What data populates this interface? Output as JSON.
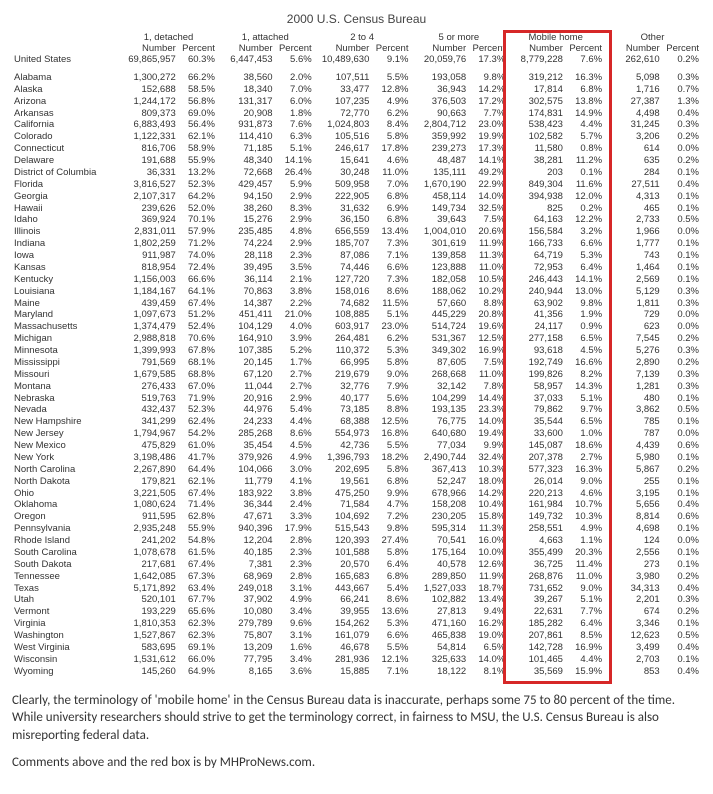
{
  "title": "2000 U.S. Census Bureau",
  "columns": [
    {
      "group": "1, detached",
      "sub": [
        "Number",
        "Percent"
      ]
    },
    {
      "group": "1, attached",
      "sub": [
        "Number",
        "Percent"
      ]
    },
    {
      "group": "2 to 4",
      "sub": [
        "Number",
        "Percent"
      ]
    },
    {
      "group": "5 or more",
      "sub": [
        "Number",
        "Percent"
      ]
    },
    {
      "group": "Mobile home",
      "sub": [
        "Number",
        "Percent"
      ]
    },
    {
      "group": "Other",
      "sub": [
        "Number",
        "Percent"
      ]
    }
  ],
  "first_row_label": "United States",
  "first_row": [
    "69,865,957",
    "60.3%",
    "6,447,453",
    "5.6%",
    "10,489,630",
    "9.1%",
    "20,059,76",
    "17.3%",
    "8,779,228",
    "7.6%",
    "262,610",
    "0.2%"
  ],
  "rows": [
    {
      "name": "Alabama",
      "v": [
        "1,300,272",
        "66.2%",
        "38,560",
        "2.0%",
        "107,511",
        "5.5%",
        "193,058",
        "9.8%",
        "319,212",
        "16.3%",
        "5,098",
        "0.3%"
      ]
    },
    {
      "name": "Alaska",
      "v": [
        "152,688",
        "58.5%",
        "18,340",
        "7.0%",
        "33,477",
        "12.8%",
        "36,943",
        "14.2%",
        "17,814",
        "6.8%",
        "1,716",
        "0.7%"
      ]
    },
    {
      "name": "Arizona",
      "v": [
        "1,244,172",
        "56.8%",
        "131,317",
        "6.0%",
        "107,235",
        "4.9%",
        "376,503",
        "17.2%",
        "302,575",
        "13.8%",
        "27,387",
        "1.3%"
      ]
    },
    {
      "name": "Arkansas",
      "v": [
        "809,373",
        "69.0%",
        "20,908",
        "1.8%",
        "72,770",
        "6.2%",
        "90,663",
        "7.7%",
        "174,831",
        "14.9%",
        "4,498",
        "0.4%"
      ]
    },
    {
      "name": "California",
      "v": [
        "6,883,493",
        "56.4%",
        "931,873",
        "7.6%",
        "1,024,803",
        "8.4%",
        "2,804,712",
        "23.0%",
        "538,423",
        "4.4%",
        "31,245",
        "0.3%"
      ]
    },
    {
      "name": "Colorado",
      "v": [
        "1,122,331",
        "62.1%",
        "114,410",
        "6.3%",
        "105,516",
        "5.8%",
        "359,992",
        "19.9%",
        "102,582",
        "5.7%",
        "3,206",
        "0.2%"
      ]
    },
    {
      "name": "Connecticut",
      "v": [
        "816,706",
        "58.9%",
        "71,185",
        "5.1%",
        "246,617",
        "17.8%",
        "239,273",
        "17.3%",
        "11,580",
        "0.8%",
        "614",
        "0.0%"
      ]
    },
    {
      "name": "Delaware",
      "v": [
        "191,688",
        "55.9%",
        "48,340",
        "14.1%",
        "15,641",
        "4.6%",
        "48,487",
        "14.1%",
        "38,281",
        "11.2%",
        "635",
        "0.2%"
      ]
    },
    {
      "name": "District of Columbia",
      "v": [
        "36,331",
        "13.2%",
        "72,668",
        "26.4%",
        "30,248",
        "11.0%",
        "135,111",
        "49.2%",
        "203",
        "0.1%",
        "284",
        "0.1%"
      ]
    },
    {
      "name": "Florida",
      "v": [
        "3,816,527",
        "52.3%",
        "429,457",
        "5.9%",
        "509,958",
        "7.0%",
        "1,670,190",
        "22.9%",
        "849,304",
        "11.6%",
        "27,511",
        "0.4%"
      ]
    },
    {
      "name": "Georgia",
      "v": [
        "2,107,317",
        "64.2%",
        "94,150",
        "2.9%",
        "222,905",
        "6.8%",
        "458,114",
        "14.0%",
        "394,938",
        "12.0%",
        "4,313",
        "0.1%"
      ]
    },
    {
      "name": "Hawaii",
      "v": [
        "239,626",
        "52.0%",
        "38,260",
        "8.3%",
        "31,632",
        "6.9%",
        "149,734",
        "32.5%",
        "825",
        "0.2%",
        "465",
        "0.1%"
      ]
    },
    {
      "name": "Idaho",
      "v": [
        "369,924",
        "70.1%",
        "15,276",
        "2.9%",
        "36,150",
        "6.8%",
        "39,643",
        "7.5%",
        "64,163",
        "12.2%",
        "2,733",
        "0.5%"
      ]
    },
    {
      "name": "Illinois",
      "v": [
        "2,831,011",
        "57.9%",
        "235,485",
        "4.8%",
        "656,559",
        "13.4%",
        "1,004,010",
        "20.6%",
        "156,584",
        "3.2%",
        "1,966",
        "0.0%"
      ]
    },
    {
      "name": "Indiana",
      "v": [
        "1,802,259",
        "71.2%",
        "74,224",
        "2.9%",
        "185,707",
        "7.3%",
        "301,619",
        "11.9%",
        "166,733",
        "6.6%",
        "1,777",
        "0.1%"
      ]
    },
    {
      "name": "Iowa",
      "v": [
        "911,987",
        "74.0%",
        "28,118",
        "2.3%",
        "87,086",
        "7.1%",
        "139,858",
        "11.3%",
        "64,719",
        "5.3%",
        "743",
        "0.1%"
      ]
    },
    {
      "name": "Kansas",
      "v": [
        "818,954",
        "72.4%",
        "39,495",
        "3.5%",
        "74,446",
        "6.6%",
        "123,888",
        "11.0%",
        "72,953",
        "6.4%",
        "1,464",
        "0.1%"
      ]
    },
    {
      "name": "Kentucky",
      "v": [
        "1,156,003",
        "66.6%",
        "36,114",
        "2.1%",
        "127,720",
        "7.3%",
        "182,058",
        "10.5%",
        "246,443",
        "14.1%",
        "2,569",
        "0.1%"
      ]
    },
    {
      "name": "Louisiana",
      "v": [
        "1,184,167",
        "64.1%",
        "70,863",
        "3.8%",
        "158,016",
        "8.6%",
        "188,062",
        "10.2%",
        "240,944",
        "13.0%",
        "5,129",
        "0.3%"
      ]
    },
    {
      "name": "Maine",
      "v": [
        "439,459",
        "67.4%",
        "14,387",
        "2.2%",
        "74,682",
        "11.5%",
        "57,660",
        "8.8%",
        "63,902",
        "9.8%",
        "1,811",
        "0.3%"
      ]
    },
    {
      "name": "Maryland",
      "v": [
        "1,097,673",
        "51.2%",
        "451,411",
        "21.0%",
        "108,885",
        "5.1%",
        "445,229",
        "20.8%",
        "41,356",
        "1.9%",
        "729",
        "0.0%"
      ]
    },
    {
      "name": "Massachusetts",
      "v": [
        "1,374,479",
        "52.4%",
        "104,129",
        "4.0%",
        "603,917",
        "23.0%",
        "514,724",
        "19.6%",
        "24,117",
        "0.9%",
        "623",
        "0.0%"
      ]
    },
    {
      "name": "Michigan",
      "v": [
        "2,988,818",
        "70.6%",
        "164,910",
        "3.9%",
        "264,481",
        "6.2%",
        "531,367",
        "12.5%",
        "277,158",
        "6.5%",
        "7,545",
        "0.2%"
      ]
    },
    {
      "name": "Minnesota",
      "v": [
        "1,399,993",
        "67.8%",
        "107,385",
        "5.2%",
        "110,372",
        "5.3%",
        "349,302",
        "16.9%",
        "93,618",
        "4.5%",
        "5,276",
        "0.3%"
      ]
    },
    {
      "name": "Mississippi",
      "v": [
        "791,569",
        "68.1%",
        "20,145",
        "1.7%",
        "66,995",
        "5.8%",
        "87,605",
        "7.5%",
        "192,749",
        "16.6%",
        "2,890",
        "0.2%"
      ]
    },
    {
      "name": "Missouri",
      "v": [
        "1,679,585",
        "68.8%",
        "67,120",
        "2.7%",
        "219,679",
        "9.0%",
        "268,668",
        "11.0%",
        "199,826",
        "8.2%",
        "7,139",
        "0.3%"
      ]
    },
    {
      "name": "Montana",
      "v": [
        "276,433",
        "67.0%",
        "11,044",
        "2.7%",
        "32,776",
        "7.9%",
        "32,142",
        "7.8%",
        "58,957",
        "14.3%",
        "1,281",
        "0.3%"
      ]
    },
    {
      "name": "Nebraska",
      "v": [
        "519,763",
        "71.9%",
        "20,916",
        "2.9%",
        "40,177",
        "5.6%",
        "104,299",
        "14.4%",
        "37,033",
        "5.1%",
        "480",
        "0.1%"
      ]
    },
    {
      "name": "Nevada",
      "v": [
        "432,437",
        "52.3%",
        "44,976",
        "5.4%",
        "73,185",
        "8.8%",
        "193,135",
        "23.3%",
        "79,862",
        "9.7%",
        "3,862",
        "0.5%"
      ]
    },
    {
      "name": "New Hampshire",
      "v": [
        "341,299",
        "62.4%",
        "24,233",
        "4.4%",
        "68,388",
        "12.5%",
        "76,775",
        "14.0%",
        "35,544",
        "6.5%",
        "785",
        "0.1%"
      ]
    },
    {
      "name": "New Jersey",
      "v": [
        "1,794,967",
        "54.2%",
        "285,268",
        "8.6%",
        "554,973",
        "16.8%",
        "640,680",
        "19.4%",
        "33,600",
        "1.0%",
        "787",
        "0.0%"
      ]
    },
    {
      "name": "New Mexico",
      "v": [
        "475,829",
        "61.0%",
        "35,454",
        "4.5%",
        "42,736",
        "5.5%",
        "77,034",
        "9.9%",
        "145,087",
        "18.6%",
        "4,439",
        "0.6%"
      ]
    },
    {
      "name": "New York",
      "v": [
        "3,198,486",
        "41.7%",
        "379,926",
        "4.9%",
        "1,396,793",
        "18.2%",
        "2,490,744",
        "32.4%",
        "207,378",
        "2.7%",
        "5,980",
        "0.1%"
      ]
    },
    {
      "name": "North Carolina",
      "v": [
        "2,267,890",
        "64.4%",
        "104,066",
        "3.0%",
        "202,695",
        "5.8%",
        "367,413",
        "10.3%",
        "577,323",
        "16.3%",
        "5,867",
        "0.2%"
      ]
    },
    {
      "name": "North Dakota",
      "v": [
        "179,821",
        "62.1%",
        "11,779",
        "4.1%",
        "19,561",
        "6.8%",
        "52,247",
        "18.0%",
        "26,014",
        "9.0%",
        "255",
        "0.1%"
      ]
    },
    {
      "name": "Ohio",
      "v": [
        "3,221,505",
        "67.4%",
        "183,922",
        "3.8%",
        "475,250",
        "9.9%",
        "678,966",
        "14.2%",
        "220,213",
        "4.6%",
        "3,195",
        "0.1%"
      ]
    },
    {
      "name": "Oklahoma",
      "v": [
        "1,080,624",
        "71.4%",
        "36,344",
        "2.4%",
        "71,584",
        "4.7%",
        "158,208",
        "10.4%",
        "161,984",
        "10.7%",
        "5,656",
        "0.4%"
      ]
    },
    {
      "name": "Oregon",
      "v": [
        "911,595",
        "62.8%",
        "47,671",
        "3.3%",
        "104,692",
        "7.2%",
        "230,205",
        "15.8%",
        "149,732",
        "10.3%",
        "8,814",
        "0.6%"
      ]
    },
    {
      "name": "Pennsylvania",
      "v": [
        "2,935,248",
        "55.9%",
        "940,396",
        "17.9%",
        "515,543",
        "9.8%",
        "595,314",
        "11.3%",
        "258,551",
        "4.9%",
        "4,698",
        "0.1%"
      ]
    },
    {
      "name": "Rhode Island",
      "v": [
        "241,202",
        "54.8%",
        "12,204",
        "2.8%",
        "120,393",
        "27.4%",
        "70,541",
        "16.0%",
        "4,663",
        "1.1%",
        "124",
        "0.0%"
      ]
    },
    {
      "name": "South Carolina",
      "v": [
        "1,078,678",
        "61.5%",
        "40,185",
        "2.3%",
        "101,588",
        "5.8%",
        "175,164",
        "10.0%",
        "355,499",
        "20.3%",
        "2,556",
        "0.1%"
      ]
    },
    {
      "name": "South Dakota",
      "v": [
        "217,681",
        "67.4%",
        "7,381",
        "2.3%",
        "20,570",
        "6.4%",
        "40,578",
        "12.6%",
        "36,725",
        "11.4%",
        "273",
        "0.1%"
      ]
    },
    {
      "name": "Tennessee",
      "v": [
        "1,642,085",
        "67.3%",
        "68,969",
        "2.8%",
        "165,683",
        "6.8%",
        "289,850",
        "11.9%",
        "268,876",
        "11.0%",
        "3,980",
        "0.2%"
      ]
    },
    {
      "name": "Texas",
      "v": [
        "5,171,892",
        "63.4%",
        "249,018",
        "3.1%",
        "443,667",
        "5.4%",
        "1,527,033",
        "18.7%",
        "731,652",
        "9.0%",
        "34,313",
        "0.4%"
      ]
    },
    {
      "name": "Utah",
      "v": [
        "520,101",
        "67.7%",
        "37,902",
        "4.9%",
        "66,241",
        "8.6%",
        "102,882",
        "13.4%",
        "39,267",
        "5.1%",
        "2,201",
        "0.3%"
      ]
    },
    {
      "name": "Vermont",
      "v": [
        "193,229",
        "65.6%",
        "10,080",
        "3.4%",
        "39,955",
        "13.6%",
        "27,813",
        "9.4%",
        "22,631",
        "7.7%",
        "674",
        "0.2%"
      ]
    },
    {
      "name": "Virginia",
      "v": [
        "1,810,353",
        "62.3%",
        "279,789",
        "9.6%",
        "154,262",
        "5.3%",
        "471,160",
        "16.2%",
        "185,282",
        "6.4%",
        "3,346",
        "0.1%"
      ]
    },
    {
      "name": "Washington",
      "v": [
        "1,527,867",
        "62.3%",
        "75,807",
        "3.1%",
        "161,079",
        "6.6%",
        "465,838",
        "19.0%",
        "207,861",
        "8.5%",
        "12,623",
        "0.5%"
      ]
    },
    {
      "name": "West Virginia",
      "v": [
        "583,695",
        "69.1%",
        "13,209",
        "1.6%",
        "46,678",
        "5.5%",
        "54,814",
        "6.5%",
        "142,728",
        "16.9%",
        "3,499",
        "0.4%"
      ]
    },
    {
      "name": "Wisconsin",
      "v": [
        "1,531,612",
        "66.0%",
        "77,795",
        "3.4%",
        "281,936",
        "12.1%",
        "325,633",
        "14.0%",
        "101,465",
        "4.4%",
        "2,703",
        "0.1%"
      ]
    },
    {
      "name": "Wyoming",
      "v": [
        "145,260",
        "64.9%",
        "8,165",
        "3.6%",
        "15,885",
        "7.1%",
        "18,122",
        "8.1%",
        "35,569",
        "15.9%",
        "853",
        "0.4%"
      ]
    }
  ],
  "highlight": {
    "border_color": "#d62728"
  },
  "commentary": {
    "p1": "Clearly, the terminology of 'mobile home' in the Census Bureau data is inaccurate, perhaps some 75 to 80 percent of the time.  While university researchers should strive to get the terminology correct, in fairness to MSU, the U.S. Census Bureau is also misreporting federal data.",
    "p2": "Comments above and the red box is by MHProNews.com."
  }
}
